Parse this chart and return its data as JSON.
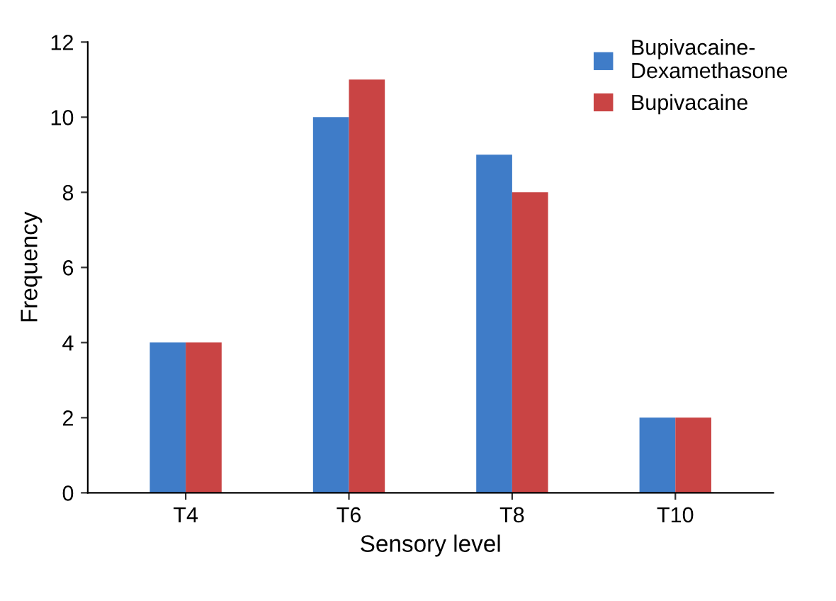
{
  "chart_data": {
    "type": "bar",
    "xlabel": "Sensory level",
    "ylabel": "Frequency",
    "categories": [
      "T4",
      "T6",
      "T8",
      "T10"
    ],
    "series": [
      {
        "name": "Bupivacaine-\nDexamethasone",
        "color": "#3f7cc8",
        "values": [
          4,
          10,
          9,
          2
        ]
      },
      {
        "name": "Bupivacaine",
        "color": "#c94444",
        "values": [
          4,
          11,
          8,
          2
        ]
      }
    ],
    "ylim": [
      0,
      12
    ],
    "yticks": [
      0,
      2,
      4,
      6,
      8,
      10,
      12
    ],
    "grid": false,
    "legend": "top right"
  }
}
